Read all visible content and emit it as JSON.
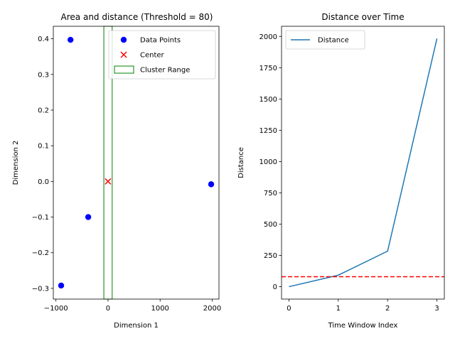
{
  "chart_data": [
    {
      "type": "scatter",
      "title": "Area and distance (Threshold = 80)",
      "xlabel": "Dimension 1",
      "ylabel": "Dimension 2",
      "xlim": [
        -1050,
        2130
      ],
      "ylim": [
        -0.33,
        0.435
      ],
      "xticks": [
        -1000,
        0,
        1000,
        2000
      ],
      "xtick_labels": [
        "−1000",
        "0",
        "1000",
        "2000"
      ],
      "yticks": [
        -0.3,
        -0.2,
        -0.1,
        0.0,
        0.1,
        0.2,
        0.3,
        0.4
      ],
      "ytick_labels": [
        "−0.3",
        "−0.2",
        "−0.1",
        "0.0",
        "0.1",
        "0.2",
        "0.3",
        "0.4"
      ],
      "series": [
        {
          "name": "Data Points",
          "marker": "circle",
          "color": "#0000ff",
          "points": [
            {
              "x": -900,
              "y": -0.292
            },
            {
              "x": -720,
              "y": 0.397
            },
            {
              "x": -380,
              "y": -0.1
            },
            {
              "x": 1980,
              "y": -0.008
            }
          ]
        },
        {
          "name": "Center",
          "marker": "x",
          "color": "#ff0000",
          "points": [
            {
              "x": 0,
              "y": 0.0
            }
          ]
        }
      ],
      "cluster_range": {
        "name": "Cluster Range",
        "x0": -80,
        "x1": 80,
        "color": "#008000"
      },
      "legend": [
        "Data Points",
        "Center",
        "Cluster Range"
      ],
      "legend_position": "top-right"
    },
    {
      "type": "line",
      "title": "Distance over Time",
      "xlabel": "Time Window Index",
      "ylabel": "Distance",
      "xlim": [
        -0.15,
        3.15
      ],
      "ylim": [
        -99,
        2081
      ],
      "xticks": [
        0,
        1,
        2,
        3
      ],
      "xtick_labels": [
        "0",
        "1",
        "2",
        "3"
      ],
      "yticks": [
        0,
        250,
        500,
        750,
        1000,
        1250,
        1500,
        1750,
        2000
      ],
      "ytick_labels": [
        "0",
        "250",
        "500",
        "750",
        "1000",
        "1250",
        "1500",
        "1750",
        "2000"
      ],
      "series": [
        {
          "name": "Distance",
          "color": "#1f77b4",
          "x": [
            0,
            1,
            2,
            3
          ],
          "y": [
            0,
            92,
            284,
            1983
          ]
        }
      ],
      "threshold": {
        "value": 80,
        "color": "#ff0000",
        "style": "dashed"
      },
      "legend": [
        "Distance"
      ],
      "legend_position": "top-left"
    }
  ]
}
